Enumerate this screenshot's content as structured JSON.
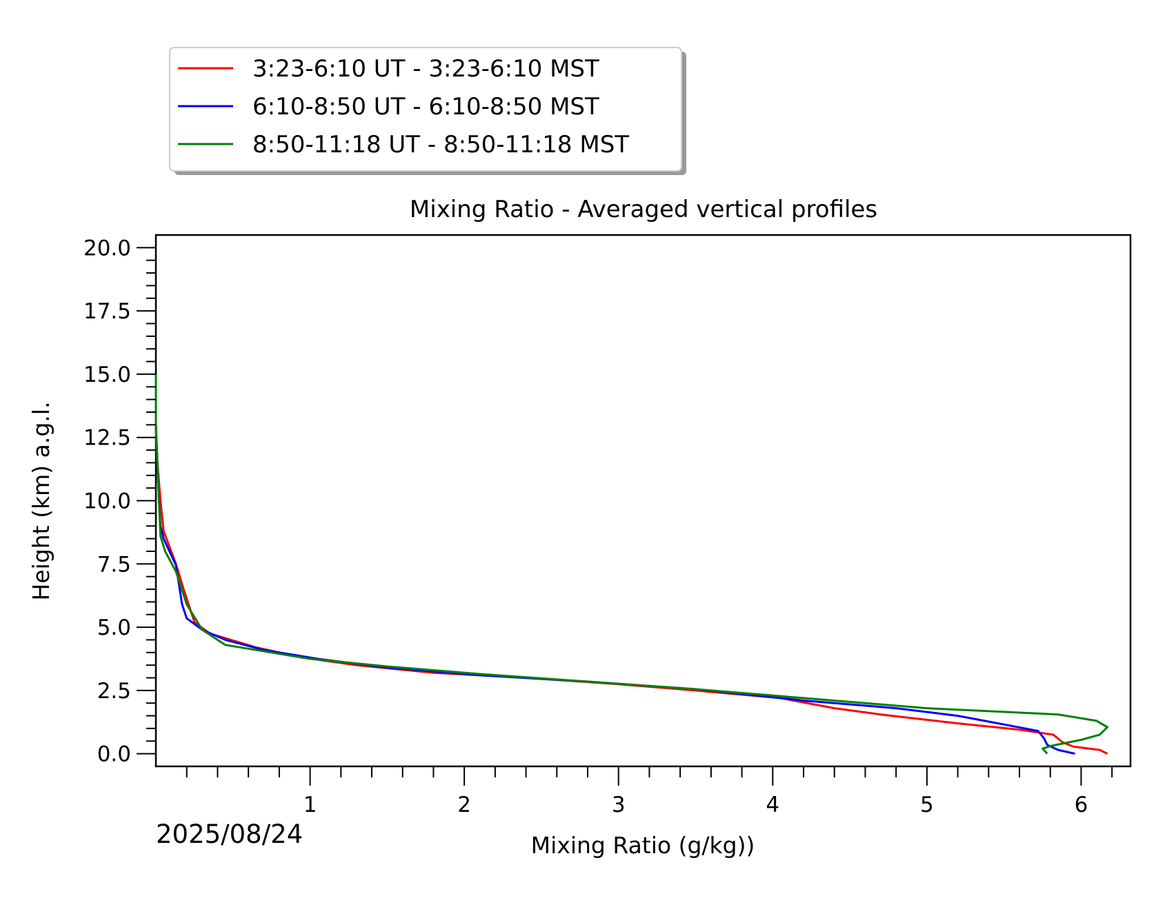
{
  "chart_data": {
    "type": "line",
    "title": "Mixing Ratio - Averaged vertical profiles",
    "xlabel": "Mixing Ratio (g/kg))",
    "ylabel": "Height (km) a.g.l.",
    "date_label": "2025/08/24",
    "xlim": [
      0,
      6.32
    ],
    "ylim": [
      -0.5,
      20.5
    ],
    "x_ticks": [
      1,
      2,
      3,
      4,
      5,
      6
    ],
    "x_tick_labels": [
      "1",
      "2",
      "3",
      "4",
      "5",
      "6"
    ],
    "y_ticks": [
      0,
      2.5,
      5,
      7.5,
      10,
      12.5,
      15,
      17.5,
      20
    ],
    "y_tick_labels": [
      "0.0",
      "2.5",
      "5.0",
      "7.5",
      "10.0",
      "12.5",
      "15.0",
      "17.5",
      "20.0"
    ],
    "grid": false,
    "legend_position": "above plot, top-left",
    "series": [
      {
        "name": "3:23-6:10 UT - 3:23-6:10 MST",
        "color": "#ff0000",
        "points": [
          [
            6.17,
            0.0
          ],
          [
            6.12,
            0.15
          ],
          [
            5.95,
            0.28
          ],
          [
            5.88,
            0.45
          ],
          [
            5.82,
            0.75
          ],
          [
            5.6,
            0.95
          ],
          [
            5.2,
            1.2
          ],
          [
            4.7,
            1.55
          ],
          [
            4.4,
            1.8
          ],
          [
            4.05,
            2.2
          ],
          [
            3.5,
            2.5
          ],
          [
            3.0,
            2.75
          ],
          [
            2.4,
            3.0
          ],
          [
            1.8,
            3.2
          ],
          [
            1.3,
            3.5
          ],
          [
            0.95,
            3.8
          ],
          [
            0.65,
            4.2
          ],
          [
            0.35,
            4.75
          ],
          [
            0.25,
            5.2
          ],
          [
            0.18,
            6.5
          ],
          [
            0.13,
            7.5
          ],
          [
            0.05,
            8.8
          ],
          [
            0.03,
            10.0
          ],
          [
            0.01,
            11.5
          ],
          [
            0.0,
            13.0
          ],
          [
            0.0,
            15.0
          ]
        ]
      },
      {
        "name": "6:10-8:50 UT - 6:10-8:50 MST",
        "color": "#0000ff",
        "points": [
          [
            5.96,
            0.0
          ],
          [
            5.85,
            0.15
          ],
          [
            5.78,
            0.35
          ],
          [
            5.76,
            0.6
          ],
          [
            5.72,
            0.9
          ],
          [
            5.55,
            1.1
          ],
          [
            5.2,
            1.5
          ],
          [
            4.8,
            1.8
          ],
          [
            4.2,
            2.1
          ],
          [
            3.5,
            2.55
          ],
          [
            2.8,
            2.85
          ],
          [
            2.1,
            3.1
          ],
          [
            1.5,
            3.4
          ],
          [
            1.05,
            3.75
          ],
          [
            0.7,
            4.1
          ],
          [
            0.45,
            4.5
          ],
          [
            0.3,
            4.9
          ],
          [
            0.2,
            5.35
          ],
          [
            0.17,
            5.9
          ],
          [
            0.13,
            7.45
          ],
          [
            0.05,
            8.5
          ],
          [
            0.03,
            9.0
          ],
          [
            0.02,
            10.0
          ],
          [
            0.01,
            11.5
          ],
          [
            0.0,
            13.0
          ],
          [
            0.0,
            15.0
          ]
        ]
      },
      {
        "name": "8:50-11:18 UT - 8:50-11:18 MST",
        "color": "#008000",
        "points": [
          [
            5.78,
            0.0
          ],
          [
            5.75,
            0.2
          ],
          [
            5.8,
            0.3
          ],
          [
            6.0,
            0.55
          ],
          [
            6.12,
            0.75
          ],
          [
            6.17,
            1.05
          ],
          [
            6.1,
            1.3
          ],
          [
            5.85,
            1.55
          ],
          [
            5.0,
            1.8
          ],
          [
            4.2,
            2.2
          ],
          [
            3.5,
            2.55
          ],
          [
            2.8,
            2.85
          ],
          [
            2.1,
            3.15
          ],
          [
            1.5,
            3.45
          ],
          [
            1.0,
            3.75
          ],
          [
            0.45,
            4.3
          ],
          [
            0.3,
            4.9
          ],
          [
            0.2,
            5.9
          ],
          [
            0.13,
            7.2
          ],
          [
            0.06,
            8.0
          ],
          [
            0.03,
            8.6
          ],
          [
            0.02,
            10.0
          ],
          [
            0.01,
            11.5
          ],
          [
            0.0,
            13.0
          ],
          [
            0.0,
            15.0
          ]
        ]
      }
    ]
  }
}
